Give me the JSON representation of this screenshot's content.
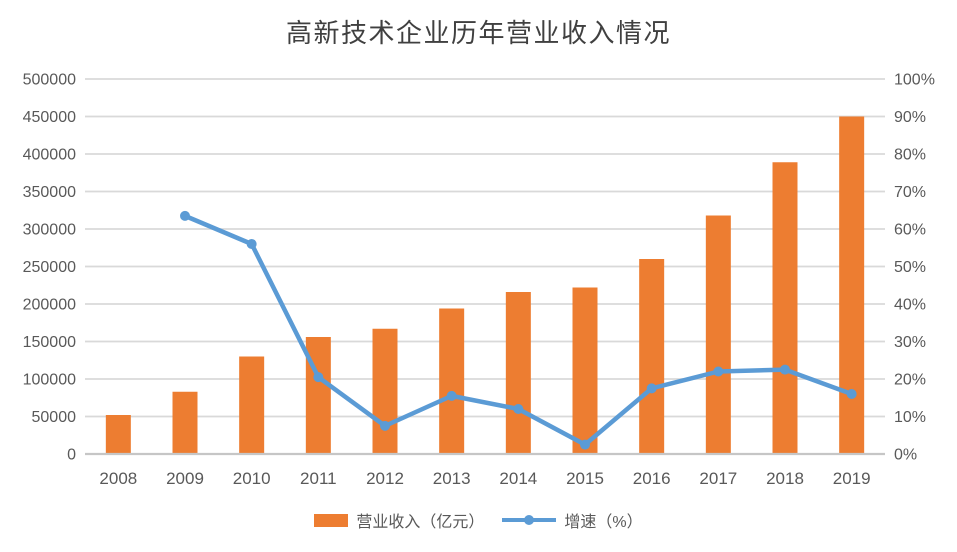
{
  "title": "高新技术企业历年营业收入情况",
  "chart_data": {
    "type": "combo-bar-line",
    "title": "高新技术企业历年营业收入情况",
    "categories": [
      "2008",
      "2009",
      "2010",
      "2011",
      "2012",
      "2013",
      "2014",
      "2015",
      "2016",
      "2017",
      "2018",
      "2019"
    ],
    "series": [
      {
        "name": "营业收入（亿元）",
        "type": "bar",
        "axis": "left",
        "color": "#ED7D31",
        "values": [
          52000,
          83000,
          130000,
          156000,
          167000,
          194000,
          216000,
          222000,
          260000,
          318000,
          389000,
          450000
        ]
      },
      {
        "name": "增速（%）",
        "type": "line",
        "axis": "right",
        "color": "#5B9BD5",
        "values": [
          null,
          63.5,
          56,
          20.5,
          7.5,
          15.5,
          12,
          2.5,
          17.5,
          22,
          22.5,
          16
        ]
      }
    ],
    "left_axis": {
      "min": 0,
      "max": 500000,
      "step": 50000,
      "tick_labels": [
        "0",
        "50000",
        "100000",
        "150000",
        "200000",
        "250000",
        "300000",
        "350000",
        "400000",
        "450000",
        "500000"
      ]
    },
    "right_axis": {
      "min": 0,
      "max": 100,
      "step": 10,
      "tick_labels": [
        "0%",
        "10%",
        "20%",
        "30%",
        "40%",
        "50%",
        "60%",
        "70%",
        "80%",
        "90%",
        "100%"
      ]
    },
    "grid": true,
    "legend_position": "bottom",
    "colors": {
      "bar": "#ED7D31",
      "line": "#5B9BD5",
      "gridline": "#D9D9D9",
      "axis_line": "#C6C6C6",
      "axis_text": "#595959",
      "title_text": "#404040"
    }
  }
}
